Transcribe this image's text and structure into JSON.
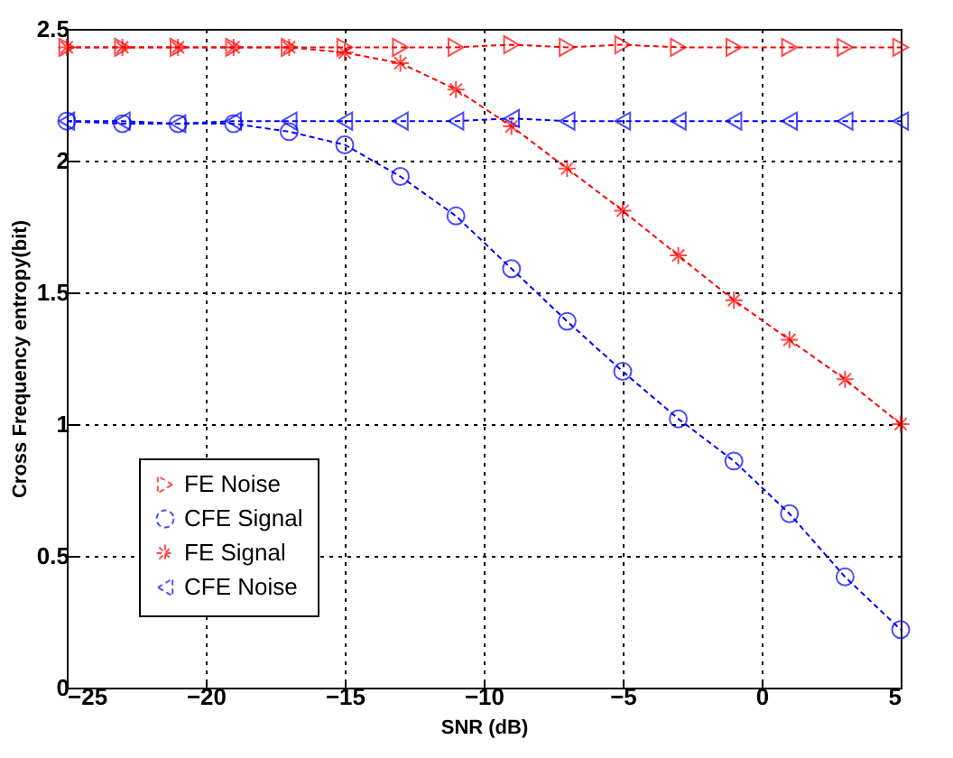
{
  "chart_data": {
    "type": "line",
    "xlabel": "SNR (dB)",
    "ylabel": "Cross Frequency entropy(bit)",
    "x": [
      -25,
      -23,
      -21,
      -19,
      -17,
      -15,
      -13,
      -11,
      -9,
      -7,
      -5,
      -3,
      -1,
      1,
      3,
      5
    ],
    "series": [
      {
        "name": "FE Noise",
        "color": "#ff0000",
        "marker": "triangle-right",
        "values": [
          2.43,
          2.43,
          2.43,
          2.43,
          2.43,
          2.43,
          2.43,
          2.43,
          2.44,
          2.43,
          2.44,
          2.43,
          2.43,
          2.43,
          2.43,
          2.43
        ]
      },
      {
        "name": "CFE Signal",
        "color": "#0000ff",
        "marker": "circle",
        "values": [
          2.15,
          2.14,
          2.14,
          2.14,
          2.11,
          2.06,
          1.94,
          1.79,
          1.59,
          1.39,
          1.2,
          1.02,
          0.86,
          0.66,
          0.42,
          0.22
        ]
      },
      {
        "name": "FE Signal",
        "color": "#ff0000",
        "marker": "cross",
        "values": [
          2.43,
          2.43,
          2.43,
          2.43,
          2.43,
          2.41,
          2.37,
          2.27,
          2.13,
          1.97,
          1.81,
          1.64,
          1.47,
          1.32,
          1.17,
          1.0
        ]
      },
      {
        "name": "CFE Noise",
        "color": "#0000ff",
        "marker": "triangle-left",
        "values": [
          2.15,
          2.15,
          2.14,
          2.15,
          2.15,
          2.15,
          2.15,
          2.15,
          2.16,
          2.15,
          2.15,
          2.15,
          2.15,
          2.15,
          2.15,
          2.15
        ]
      }
    ],
    "xlim": [
      -25,
      5
    ],
    "xticks": [
      -25,
      -20,
      -15,
      -10,
      -5,
      0,
      5
    ],
    "ylim": [
      0,
      2.5
    ],
    "yticks": [
      0,
      0.5,
      1,
      1.5,
      2,
      2.5
    ],
    "grid": true,
    "legend": "bottom left",
    "line_style": "dashed"
  }
}
